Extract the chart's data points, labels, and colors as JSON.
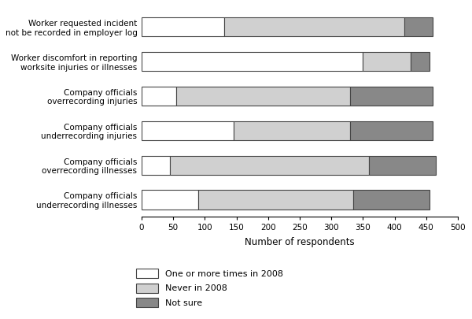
{
  "categories": [
    "Company officials\nunderrecording illnesses",
    "Company officials\noverrecording illnesses",
    "Company officials\nunderrecording injuries",
    "Company officials\noverrecording injuries",
    "Worker discomfort in reporting\nworksite injuries or illnesses",
    "Worker requested incident\nnot be recorded in employer log"
  ],
  "one_or_more": [
    90,
    45,
    145,
    55,
    350,
    130
  ],
  "never": [
    245,
    315,
    185,
    275,
    75,
    285
  ],
  "not_sure": [
    120,
    105,
    130,
    130,
    30,
    45
  ],
  "colors": {
    "one_or_more": "#ffffff",
    "never": "#d0d0d0",
    "not_sure": "#888888"
  },
  "bar_edgecolor": "#444444",
  "xlabel": "Number of respondents",
  "xlim": [
    0,
    500
  ],
  "xticks": [
    0,
    50,
    100,
    150,
    200,
    250,
    300,
    350,
    400,
    450,
    500
  ],
  "legend_labels": [
    "One or more times in 2008",
    "Never in 2008",
    "Not sure"
  ],
  "figsize": [
    6.0,
    4.05
  ],
  "dpi": 100,
  "bar_height": 0.55
}
